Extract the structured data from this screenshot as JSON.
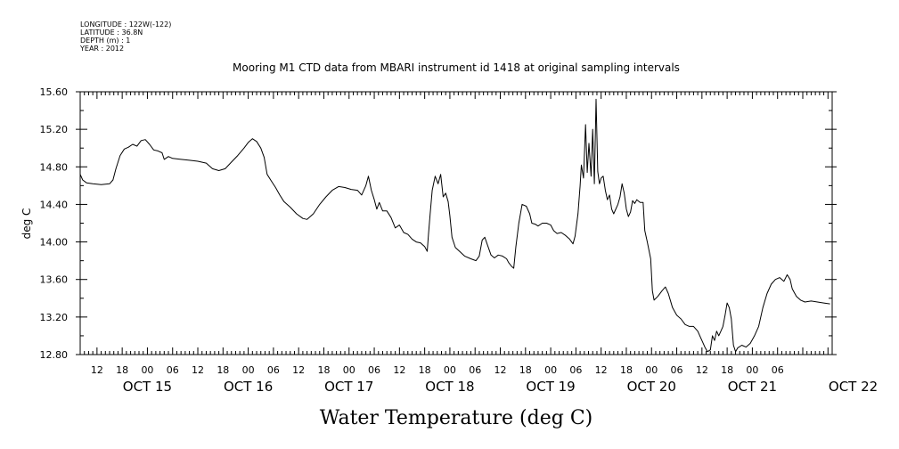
{
  "header": {
    "longitude": "LONGITUDE : 122W(-122)",
    "latitude": "LATITUDE : 36.8N",
    "depth": "DEPTH (m) : 1",
    "year": "YEAR : 2012"
  },
  "chart_data": {
    "type": "line",
    "title": "Mooring M1 CTD data from MBARI instrument id 1418 at original sampling intervals",
    "xlabel": "Water Temperature (deg C)",
    "ylabel": "deg C",
    "ylim": [
      12.8,
      15.6
    ],
    "yticks": [
      "12.80",
      "13.20",
      "13.60",
      "14.00",
      "14.40",
      "14.80",
      "15.20",
      "15.60"
    ],
    "xlim_hours": [
      8,
      187
    ],
    "hour_ticks": [
      "12",
      "18",
      "00",
      "06",
      "12",
      "18",
      "00",
      "06",
      "12",
      "18",
      "00",
      "06",
      "12",
      "18",
      "00",
      "06",
      "12",
      "18",
      "00",
      "06",
      "12",
      "18",
      "00",
      "06",
      "12",
      "18",
      "00",
      "06"
    ],
    "day_labels": [
      "OCT 15",
      "OCT 16",
      "OCT 17",
      "OCT 18",
      "OCT 19",
      "OCT 20",
      "OCT 21",
      "OCT 22"
    ],
    "line_color": "#000000",
    "grid": false,
    "series": [
      {
        "points": [
          [
            8.0,
            14.72
          ],
          [
            8.6,
            14.66
          ],
          [
            9.5,
            14.63
          ],
          [
            11,
            14.62
          ],
          [
            13,
            14.61
          ],
          [
            15,
            14.62
          ],
          [
            15.8,
            14.66
          ],
          [
            16.5,
            14.78
          ],
          [
            17.5,
            14.92
          ],
          [
            18.5,
            14.99
          ],
          [
            19.5,
            15.01
          ],
          [
            20.5,
            15.04
          ],
          [
            21.5,
            15.02
          ],
          [
            22.5,
            15.08
          ],
          [
            23.5,
            15.09
          ],
          [
            24.5,
            15.04
          ],
          [
            25.5,
            14.98
          ],
          [
            26.5,
            14.97
          ],
          [
            27.5,
            14.95
          ],
          [
            28,
            14.88
          ],
          [
            29,
            14.91
          ],
          [
            30,
            14.89
          ],
          [
            32,
            14.88
          ],
          [
            34,
            14.87
          ],
          [
            36,
            14.86
          ],
          [
            38,
            14.84
          ],
          [
            39.5,
            14.78
          ],
          [
            41,
            14.76
          ],
          [
            42.5,
            14.78
          ],
          [
            44,
            14.85
          ],
          [
            45.5,
            14.92
          ],
          [
            47,
            15.0
          ],
          [
            48,
            15.06
          ],
          [
            49,
            15.1
          ],
          [
            50,
            15.07
          ],
          [
            51,
            15.0
          ],
          [
            51.8,
            14.9
          ],
          [
            52.5,
            14.72
          ],
          [
            53.5,
            14.65
          ],
          [
            54.5,
            14.58
          ],
          [
            55.5,
            14.5
          ],
          [
            56.5,
            14.43
          ],
          [
            58,
            14.37
          ],
          [
            59.5,
            14.3
          ],
          [
            61,
            14.25
          ],
          [
            62,
            14.24
          ],
          [
            63.5,
            14.3
          ],
          [
            65,
            14.4
          ],
          [
            66.5,
            14.48
          ],
          [
            68,
            14.55
          ],
          [
            69.5,
            14.59
          ],
          [
            71,
            14.58
          ],
          [
            72.5,
            14.56
          ],
          [
            74,
            14.55
          ],
          [
            75,
            14.5
          ],
          [
            76,
            14.6
          ],
          [
            76.6,
            14.7
          ],
          [
            77.3,
            14.55
          ],
          [
            78,
            14.45
          ],
          [
            78.6,
            14.35
          ],
          [
            79.2,
            14.42
          ],
          [
            80,
            14.33
          ],
          [
            81,
            14.33
          ],
          [
            82,
            14.26
          ],
          [
            83,
            14.15
          ],
          [
            84,
            14.18
          ],
          [
            85,
            14.1
          ],
          [
            86,
            14.08
          ],
          [
            87,
            14.03
          ],
          [
            88,
            14.0
          ],
          [
            89,
            13.99
          ],
          [
            90,
            13.95
          ],
          [
            90.6,
            13.9
          ],
          [
            90.9,
            14.08
          ],
          [
            91.3,
            14.3
          ],
          [
            91.8,
            14.55
          ],
          [
            92.5,
            14.7
          ],
          [
            93.2,
            14.62
          ],
          [
            93.8,
            14.72
          ],
          [
            94.4,
            14.48
          ],
          [
            95,
            14.52
          ],
          [
            95.6,
            14.43
          ],
          [
            96,
            14.28
          ],
          [
            96.5,
            14.05
          ],
          [
            97.3,
            13.94
          ],
          [
            98.3,
            13.9
          ],
          [
            99.5,
            13.85
          ],
          [
            101,
            13.82
          ],
          [
            102.2,
            13.8
          ],
          [
            103,
            13.85
          ],
          [
            103.7,
            14.02
          ],
          [
            104.3,
            14.05
          ],
          [
            105,
            13.96
          ],
          [
            105.8,
            13.86
          ],
          [
            106.6,
            13.83
          ],
          [
            107.5,
            13.86
          ],
          [
            108.5,
            13.85
          ],
          [
            109.5,
            13.82
          ],
          [
            110,
            13.78
          ],
          [
            110.7,
            13.74
          ],
          [
            111.2,
            13.72
          ],
          [
            111.7,
            13.95
          ],
          [
            112.4,
            14.2
          ],
          [
            113.2,
            14.4
          ],
          [
            114.2,
            14.38
          ],
          [
            115,
            14.3
          ],
          [
            115.5,
            14.2
          ],
          [
            116.3,
            14.19
          ],
          [
            117,
            14.17
          ],
          [
            118,
            14.2
          ],
          [
            119,
            14.2
          ],
          [
            120,
            14.18
          ],
          [
            120.7,
            14.12
          ],
          [
            121.5,
            14.09
          ],
          [
            122.5,
            14.1
          ],
          [
            123.5,
            14.07
          ],
          [
            124.5,
            14.03
          ],
          [
            125.3,
            13.98
          ],
          [
            125.8,
            14.06
          ],
          [
            126.5,
            14.3
          ],
          [
            127,
            14.6
          ],
          [
            127.3,
            14.82
          ],
          [
            127.8,
            14.68
          ],
          [
            128.3,
            15.25
          ],
          [
            128.7,
            14.74
          ],
          [
            129.1,
            15.05
          ],
          [
            129.6,
            14.7
          ],
          [
            130,
            15.2
          ],
          [
            130.4,
            14.62
          ],
          [
            130.8,
            15.52
          ],
          [
            131.2,
            14.75
          ],
          [
            131.6,
            14.62
          ],
          [
            132,
            14.68
          ],
          [
            132.5,
            14.7
          ],
          [
            133,
            14.55
          ],
          [
            133.5,
            14.45
          ],
          [
            134,
            14.5
          ],
          [
            134.5,
            14.35
          ],
          [
            135,
            14.3
          ],
          [
            136,
            14.4
          ],
          [
            136.5,
            14.48
          ],
          [
            137,
            14.62
          ],
          [
            137.5,
            14.52
          ],
          [
            138,
            14.35
          ],
          [
            138.5,
            14.27
          ],
          [
            139,
            14.32
          ],
          [
            139.5,
            14.44
          ],
          [
            140,
            14.41
          ],
          [
            140.5,
            14.45
          ],
          [
            141.3,
            14.42
          ],
          [
            142,
            14.42
          ],
          [
            142.4,
            14.12
          ],
          [
            143,
            14.0
          ],
          [
            143.8,
            13.82
          ],
          [
            144.2,
            13.48
          ],
          [
            144.6,
            13.38
          ],
          [
            145.5,
            13.42
          ],
          [
            146.5,
            13.48
          ],
          [
            147.3,
            13.52
          ],
          [
            148,
            13.45
          ],
          [
            149,
            13.3
          ],
          [
            150,
            13.22
          ],
          [
            151,
            13.18
          ],
          [
            152,
            13.12
          ],
          [
            153,
            13.1
          ],
          [
            154,
            13.1
          ],
          [
            155,
            13.05
          ],
          [
            156,
            12.95
          ],
          [
            156.7,
            12.88
          ],
          [
            157.3,
            12.83
          ],
          [
            158,
            12.85
          ],
          [
            158.5,
            13.0
          ],
          [
            159,
            12.95
          ],
          [
            159.5,
            13.05
          ],
          [
            160,
            13.0
          ],
          [
            160.5,
            13.05
          ],
          [
            161,
            13.1
          ],
          [
            161.5,
            13.22
          ],
          [
            162,
            13.35
          ],
          [
            162.5,
            13.3
          ],
          [
            163,
            13.18
          ],
          [
            163.5,
            12.9
          ],
          [
            164,
            12.83
          ],
          [
            164.5,
            12.87
          ],
          [
            165.5,
            12.9
          ],
          [
            166.5,
            12.88
          ],
          [
            167.5,
            12.92
          ],
          [
            168.5,
            13.0
          ],
          [
            169.5,
            13.1
          ],
          [
            170.5,
            13.3
          ],
          [
            171.5,
            13.45
          ],
          [
            172.5,
            13.55
          ],
          [
            173.5,
            13.6
          ],
          [
            174.5,
            13.62
          ],
          [
            175.5,
            13.58
          ],
          [
            176.3,
            13.65
          ],
          [
            177,
            13.6
          ],
          [
            177.5,
            13.5
          ],
          [
            178.5,
            13.42
          ],
          [
            179.5,
            13.38
          ],
          [
            180.5,
            13.36
          ],
          [
            182,
            13.37
          ],
          [
            183.5,
            13.36
          ],
          [
            185,
            13.35
          ],
          [
            186.5,
            13.34
          ]
        ]
      }
    ]
  }
}
